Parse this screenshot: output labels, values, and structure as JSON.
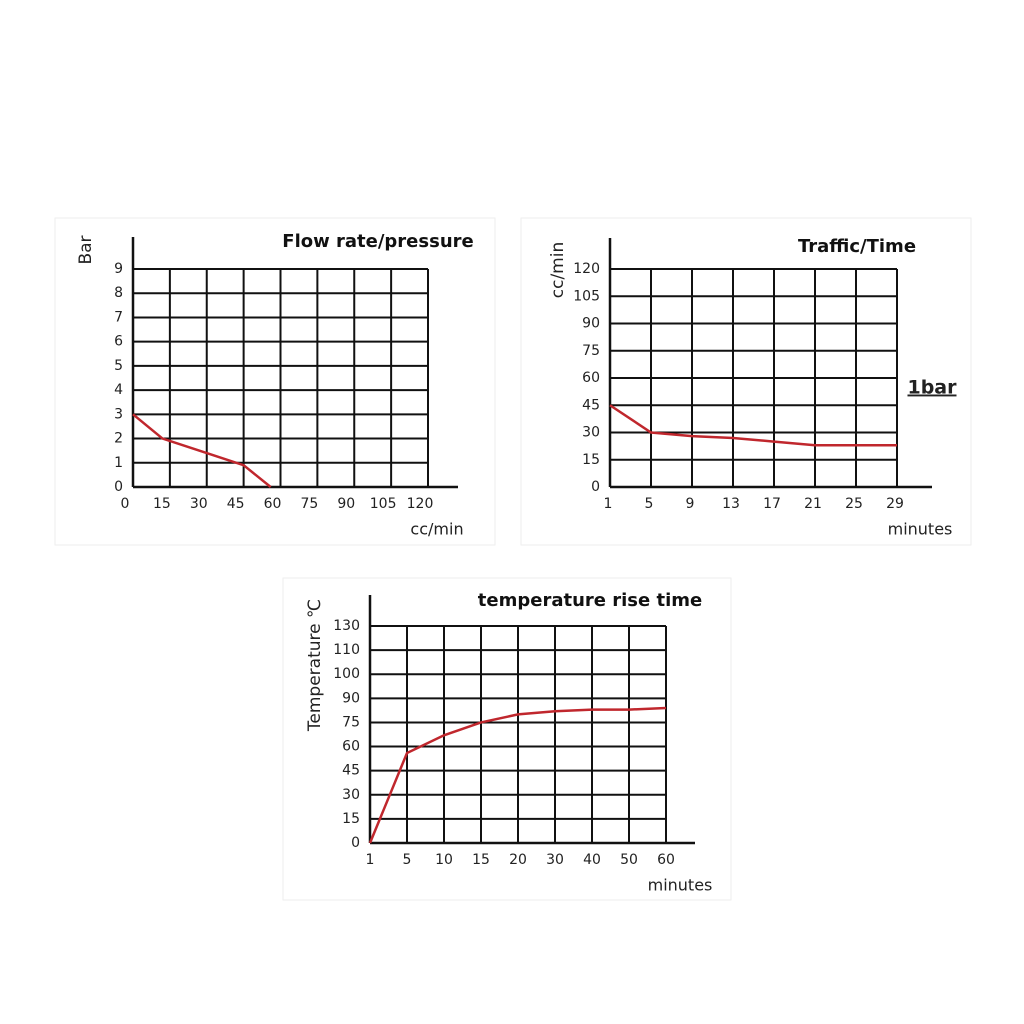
{
  "chart_data": [
    {
      "type": "line",
      "title": "Flow rate/pressure",
      "xlabel": "cc/min",
      "ylabel": "Bar",
      "x": [
        0,
        12,
        30,
        45,
        56
      ],
      "values": [
        3,
        2,
        1.4,
        0.9,
        0
      ],
      "color": "#c0272d",
      "xlim": [
        0,
        120
      ],
      "xticks": [
        0,
        15,
        30,
        45,
        60,
        75,
        90,
        105,
        120
      ],
      "ylim": [
        0,
        9
      ],
      "yticks": [
        0,
        1,
        2,
        3,
        4,
        5,
        6,
        7,
        8,
        9
      ],
      "grid": true
    },
    {
      "type": "line",
      "title": "Traffic/Time",
      "xlabel": "minutes",
      "ylabel": "cc/min",
      "annotation": "1bar",
      "x": [
        1,
        5,
        9,
        13,
        17,
        21,
        25,
        29
      ],
      "values": [
        45,
        30,
        28,
        27,
        25,
        23,
        23,
        23
      ],
      "color": "#c0272d",
      "xlim": [
        1,
        29
      ],
      "xticks": [
        1,
        5,
        9,
        13,
        17,
        21,
        25,
        29
      ],
      "ylim": [
        0,
        120
      ],
      "yticks": [
        0,
        15,
        30,
        45,
        60,
        75,
        90,
        105,
        120
      ],
      "grid": true
    },
    {
      "type": "line",
      "title": "temperature rise time",
      "xlabel": "minutes",
      "ylabel": "Temperature ℃",
      "categories": [
        "1",
        "5",
        "10",
        "15",
        "20",
        "30",
        "40",
        "50",
        "60"
      ],
      "values": [
        0,
        56,
        67,
        75,
        80,
        82,
        83,
        83,
        84
      ],
      "color": "#c0272d",
      "ylim": [
        0,
        130
      ],
      "yticks": [
        0,
        15,
        30,
        45,
        60,
        75,
        90,
        100,
        110,
        130
      ],
      "grid": true
    }
  ]
}
